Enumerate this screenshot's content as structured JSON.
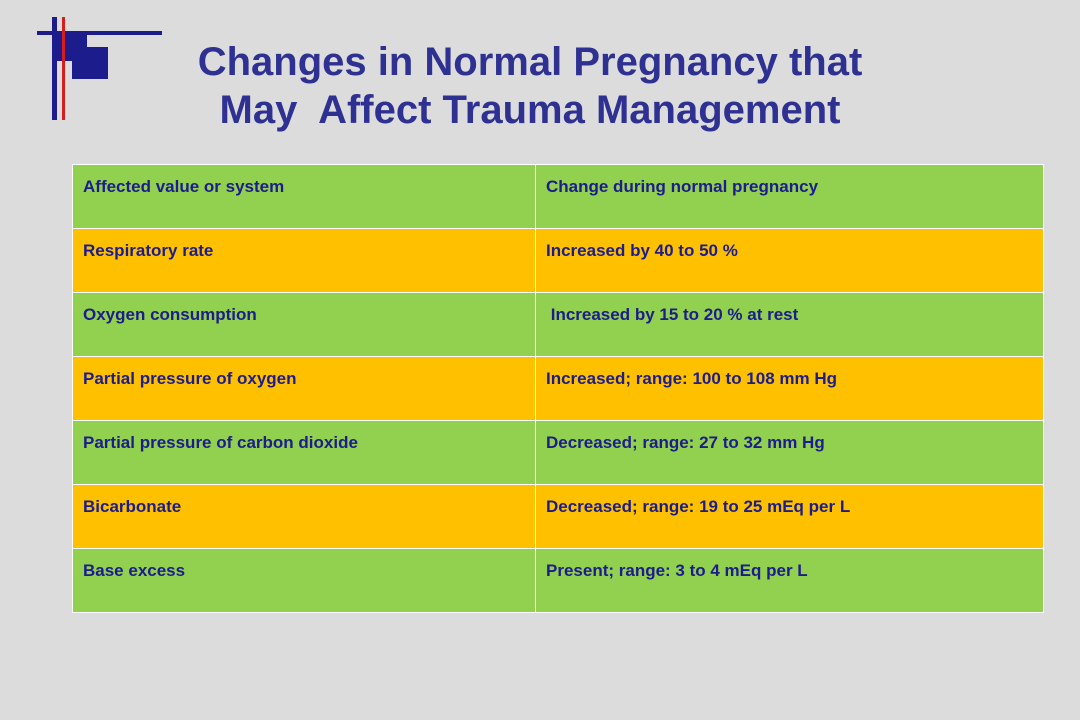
{
  "slide": {
    "title_lines": [
      "Changes in Normal Pregnancy that",
      "May  Affect Trauma Management"
    ]
  },
  "table": {
    "header": {
      "col1": "Affected value or system",
      "col2": "Change during normal pregnancy"
    },
    "rows": [
      {
        "system": "Respiratory rate",
        "change": "Increased by 40 to 50 %"
      },
      {
        "system": "Oxygen consumption",
        "change": " Increased by 15 to 20 % at rest"
      },
      {
        "system": "Partial pressure of oxygen",
        "change": "Increased; range: 100 to 108 mm Hg"
      },
      {
        "system": "Partial pressure of carbon dioxide",
        "change": "Decreased; range: 27 to 32 mm Hg"
      },
      {
        "system": "Bicarbonate",
        "change": "Decreased; range: 19 to 25 mEq per L"
      },
      {
        "system": "Base excess",
        "change": "Present; range: 3 to 4 mEq per L"
      }
    ],
    "colors": {
      "green": "#92d050",
      "orange": "#ffc000",
      "text": "#1c1c8c"
    }
  },
  "colors": {
    "background": "#dcdcdc",
    "title": "#2e3192",
    "logo_blue": "#1c1c8c",
    "logo_red": "#d91c1c"
  }
}
